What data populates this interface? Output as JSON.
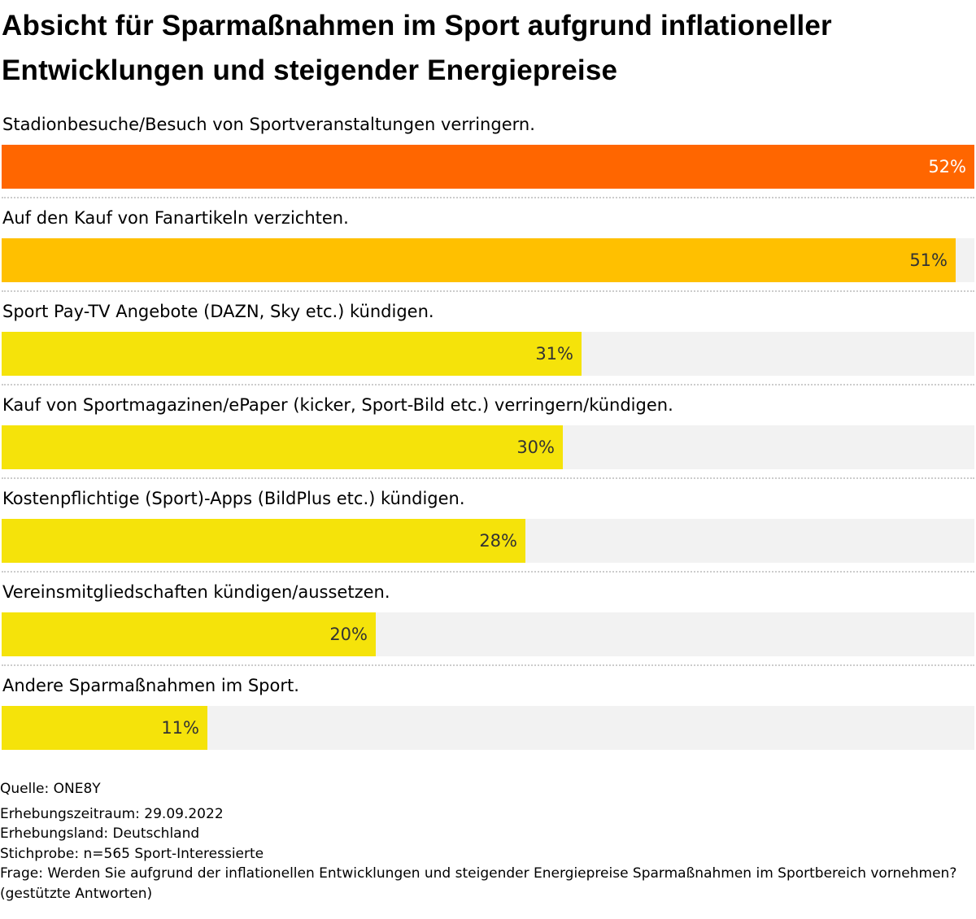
{
  "title": "Absicht für Sparmaßnahmen im Sport aufgrund inflationeller Entwicklungen und steigender Energiepreise",
  "chart_data": {
    "type": "bar",
    "orientation": "horizontal",
    "title": "Absicht für Sparmaßnahmen im Sport aufgrund inflationeller Entwicklungen und steigender Energiepreise",
    "categories": [
      "Stadionbesuche/Besuch von Sportveranstaltungen verringern.",
      "Auf den Kauf von Fanartikeln verzichten.",
      "Sport Pay-TV Angebote (DAZN, Sky etc.) kündigen.",
      "Kauf von Sportmagazinen/ePaper (kicker, Sport-Bild etc.) verringern/kündigen.",
      "Kostenpflichtige (Sport)-Apps (BildPlus etc.) kündigen.",
      "Vereinsmitgliedschaften kündigen/aussetzen.",
      "Andere Sparmaßnahmen im Sport."
    ],
    "values": [
      52,
      51,
      31,
      30,
      28,
      20,
      11
    ],
    "value_labels": [
      "52%",
      "51%",
      "31%",
      "30%",
      "28%",
      "20%",
      "11%"
    ],
    "unit": "%",
    "xlim": [
      0,
      52
    ],
    "colors": [
      "#ff6600",
      "#ffc000",
      "#f5e30a",
      "#f5e30a",
      "#f5e30a",
      "#f5e30a",
      "#f5e30a"
    ],
    "label_colors": [
      "#ffffff",
      "#333333",
      "#333333",
      "#333333",
      "#333333",
      "#333333",
      "#333333"
    ],
    "track_color": "#f2f2f2",
    "xlabel": "",
    "ylabel": "",
    "grid": false,
    "legend": "none"
  },
  "footer": {
    "source": "Quelle: ONE8Y",
    "lines": [
      "Erhebungszeitraum: 29.09.2022",
      "Erhebungsland: Deutschland",
      "Stichprobe: n=565 Sport-Interessierte",
      "Frage: Werden Sie aufgrund der inflationellen Entwicklungen und steigender Energiepreise Sparmaßnahmen im Sportbereich vornehmen? (gestützte Antworten)"
    ]
  }
}
